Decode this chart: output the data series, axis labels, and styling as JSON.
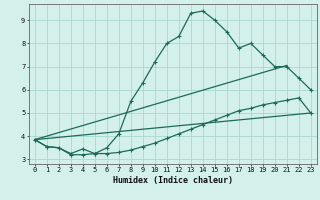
{
  "title": "",
  "xlabel": "Humidex (Indice chaleur)",
  "bg_color": "#d4f0eb",
  "grid_color": "#a8d8d0",
  "line_color": "#1a6b5a",
  "xlim": [
    -0.5,
    23.5
  ],
  "ylim": [
    2.8,
    9.7
  ],
  "xticks": [
    0,
    1,
    2,
    3,
    4,
    5,
    6,
    7,
    8,
    9,
    10,
    11,
    12,
    13,
    14,
    15,
    16,
    17,
    18,
    19,
    20,
    21,
    22,
    23
  ],
  "yticks": [
    3,
    4,
    5,
    6,
    7,
    8,
    9
  ],
  "line1_x": [
    0,
    1,
    2,
    3,
    4,
    5,
    6,
    7,
    8,
    9,
    10,
    11,
    12,
    13,
    14,
    15,
    16,
    17,
    18,
    19,
    20,
    21,
    22,
    23
  ],
  "line1_y": [
    3.85,
    3.55,
    3.5,
    3.25,
    3.45,
    3.25,
    3.5,
    4.1,
    5.5,
    6.3,
    7.2,
    8.0,
    8.3,
    9.3,
    9.4,
    9.0,
    8.5,
    7.8,
    8.0,
    7.5,
    7.0,
    7.0,
    6.5,
    6.0
  ],
  "line2_x": [
    0,
    1,
    2,
    3,
    4,
    5,
    6,
    7,
    8,
    9,
    10,
    11,
    12,
    13,
    14,
    15,
    16,
    17,
    18,
    19,
    20,
    21,
    22,
    23
  ],
  "line2_y": [
    3.85,
    3.55,
    3.5,
    3.2,
    3.2,
    3.25,
    3.25,
    3.3,
    3.4,
    3.55,
    3.7,
    3.9,
    4.1,
    4.3,
    4.5,
    4.7,
    4.9,
    5.1,
    5.2,
    5.35,
    5.45,
    5.55,
    5.65,
    5.0
  ],
  "line3_x": [
    0,
    21
  ],
  "line3_y": [
    3.85,
    7.05
  ],
  "line4_x": [
    0,
    23
  ],
  "line4_y": [
    3.85,
    5.0
  ]
}
